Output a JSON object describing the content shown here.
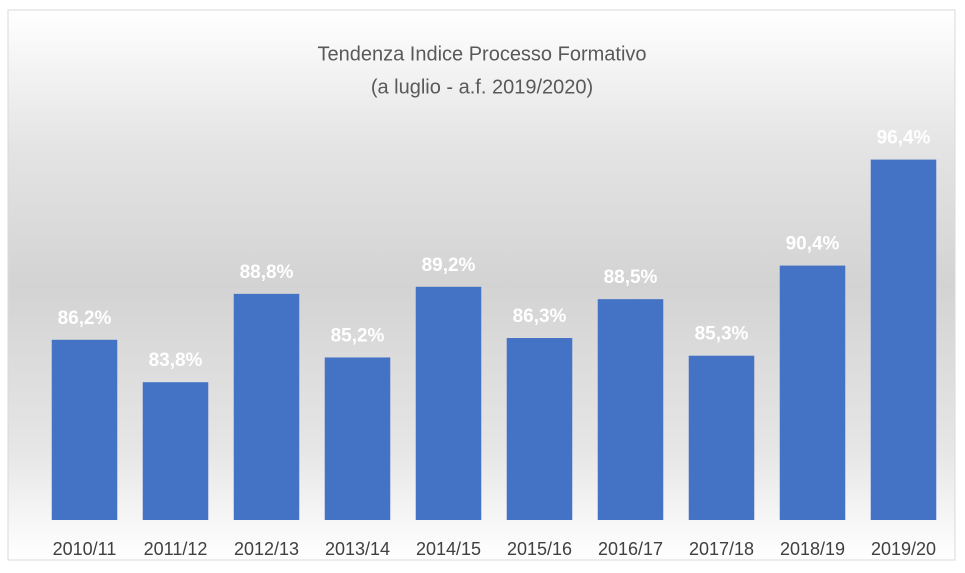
{
  "chart_data": {
    "type": "bar",
    "title": "Tendenza Indice Processo Formativo",
    "subtitle": "(a luglio - a.f. 2019/2020)",
    "categories": [
      "2010/11",
      "2011/12",
      "2012/13",
      "2013/14",
      "2014/15",
      "2015/16",
      "2016/17",
      "2017/18",
      "2018/19",
      "2019/20"
    ],
    "values": [
      86.2,
      83.8,
      88.8,
      85.2,
      89.2,
      86.3,
      88.5,
      85.3,
      90.4,
      96.4
    ],
    "value_labels": [
      "86,2%",
      "83,8%",
      "88,8%",
      "85,2%",
      "89,2%",
      "86,3%",
      "88,5%",
      "85,3%",
      "90,4%",
      "96,4%"
    ],
    "color": "#4472c4",
    "ylim": [
      76,
      100
    ]
  }
}
